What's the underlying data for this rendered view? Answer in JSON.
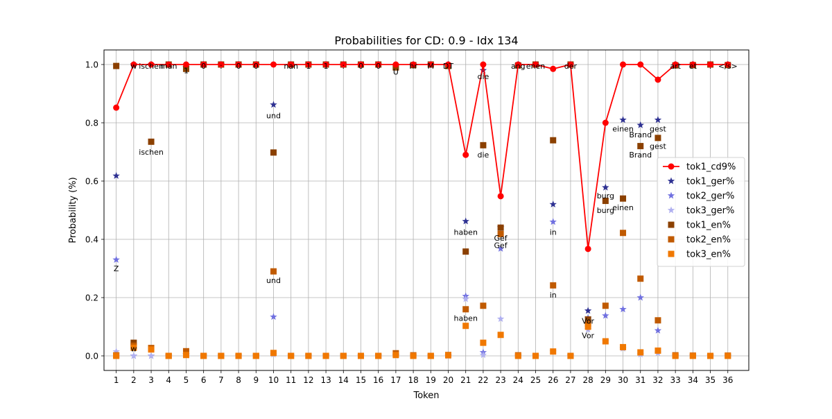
{
  "chart_data": {
    "type": "scatter",
    "title": "Probabilities for CD: 0.9 - Idx 134",
    "xlabel": "Token",
    "ylabel": "Probability (%)",
    "x": [
      1,
      2,
      3,
      4,
      5,
      6,
      7,
      8,
      9,
      10,
      11,
      12,
      13,
      14,
      15,
      16,
      17,
      18,
      19,
      20,
      21,
      22,
      23,
      24,
      25,
      26,
      27,
      28,
      29,
      30,
      31,
      32,
      33,
      34,
      35,
      36
    ],
    "xlim": [
      0.3,
      37.2
    ],
    "ylim": [
      -0.05,
      1.05
    ],
    "yticks": [
      0.0,
      0.2,
      0.4,
      0.6,
      0.8,
      1.0
    ],
    "grid": true,
    "legend_position": "center-right",
    "series": [
      {
        "name": "tok1_cd9%",
        "kind": "line",
        "color": "#ff0000",
        "marker": "circle",
        "values": [
          0.852,
          1.0,
          1.0,
          1.0,
          1.0,
          1.0,
          1.0,
          1.0,
          1.0,
          1.0,
          1.0,
          1.0,
          1.0,
          1.0,
          1.0,
          1.0,
          1.0,
          1.0,
          1.0,
          1.0,
          0.69,
          1.0,
          0.548,
          1.0,
          1.0,
          0.985,
          1.0,
          0.367,
          0.8,
          1.0,
          1.0,
          0.948,
          1.0,
          1.0,
          1.0,
          1.0
        ]
      },
      {
        "name": "tok1_ger%",
        "kind": "scatter",
        "color": "#2e3192",
        "marker": "star",
        "values": [
          0.618,
          1.0,
          1.0,
          1.0,
          0.99,
          1.0,
          1.0,
          1.0,
          1.0,
          0.862,
          1.0,
          1.0,
          1.0,
          1.0,
          1.0,
          1.0,
          0.995,
          1.0,
          1.0,
          1.0,
          0.462,
          0.98,
          0.44,
          1.0,
          1.0,
          0.52,
          1.0,
          0.155,
          0.578,
          0.81,
          0.792,
          0.81,
          1.0,
          1.0,
          1.0,
          1.0
        ]
      },
      {
        "name": "tok2_ger%",
        "kind": "scatter",
        "color": "#7070e0",
        "marker": "star",
        "values": [
          0.33,
          0.0,
          0.0,
          0.0,
          0.005,
          0.0,
          0.0,
          0.0,
          0.0,
          0.134,
          0.0,
          0.0,
          0.0,
          0.0,
          0.0,
          0.0,
          0.003,
          0.0,
          0.0,
          0.0,
          0.205,
          0.012,
          0.368,
          0.0,
          0.0,
          0.46,
          0.0,
          0.13,
          0.138,
          0.16,
          0.2,
          0.087,
          0.0,
          0.0,
          0.0,
          0.0
        ]
      },
      {
        "name": "tok3_ger%",
        "kind": "scatter",
        "color": "#b0b0f0",
        "marker": "star",
        "values": [
          0.015,
          0.0,
          0.0,
          0.0,
          0.002,
          0.0,
          0.0,
          0.0,
          0.0,
          0.005,
          0.0,
          0.0,
          0.0,
          0.0,
          0.0,
          0.0,
          0.001,
          0.0,
          0.0,
          0.0,
          0.195,
          0.003,
          0.127,
          0.0,
          0.0,
          0.015,
          0.0,
          0.09,
          0.05,
          0.025,
          0.005,
          0.01,
          0.0,
          0.0,
          0.0,
          0.0
        ]
      },
      {
        "name": "tok1_en%",
        "kind": "scatter",
        "color": "#8b4000",
        "marker": "square",
        "values": [
          0.995,
          0.045,
          0.735,
          1.0,
          0.985,
          1.0,
          1.0,
          1.0,
          1.0,
          0.698,
          1.0,
          1.0,
          1.0,
          1.0,
          1.0,
          1.0,
          0.99,
          0.998,
          1.0,
          0.995,
          0.358,
          0.723,
          0.44,
          0.997,
          1.0,
          0.74,
          1.0,
          0.125,
          0.532,
          0.54,
          0.72,
          0.748,
          0.997,
          0.998,
          1.0,
          0.998
        ]
      },
      {
        "name": "tok2_en%",
        "kind": "scatter",
        "color": "#c05a00",
        "marker": "square",
        "values": [
          0.002,
          0.035,
          0.027,
          0.0,
          0.016,
          0.0,
          0.0,
          0.0,
          0.0,
          0.29,
          0.0,
          0.0,
          0.0,
          0.0,
          0.0,
          0.0,
          0.009,
          0.002,
          0.0,
          0.003,
          0.16,
          0.172,
          0.418,
          0.002,
          0.0,
          0.242,
          0.0,
          0.11,
          0.172,
          0.422,
          0.265,
          0.122,
          0.002,
          0.001,
          0.0,
          0.001
        ]
      },
      {
        "name": "tok3_en%",
        "kind": "scatter",
        "color": "#f07800",
        "marker": "square",
        "values": [
          0.0,
          0.028,
          0.022,
          0.0,
          0.003,
          0.0,
          0.0,
          0.0,
          0.0,
          0.01,
          0.0,
          0.0,
          0.0,
          0.0,
          0.0,
          0.0,
          0.003,
          0.0,
          0.0,
          0.002,
          0.103,
          0.045,
          0.072,
          0.0,
          0.0,
          0.015,
          0.0,
          0.1,
          0.05,
          0.03,
          0.012,
          0.018,
          0.0,
          0.0,
          0.0,
          0.0
        ]
      }
    ],
    "annotations": [
      {
        "x": 1,
        "y": 0.3,
        "text": "Z"
      },
      {
        "x": 2,
        "y": 0.995,
        "text": "w"
      },
      {
        "x": 2,
        "y": 0.0245,
        "text": "w"
      },
      {
        "x": 3,
        "y": 0.995,
        "text": "ischen"
      },
      {
        "x": 3,
        "y": 0.7,
        "text": "ischen"
      },
      {
        "x": 4,
        "y": 0.995,
        "text": "man"
      },
      {
        "x": 5,
        "y": 0.98,
        "text": "1"
      },
      {
        "x": 6,
        "y": 0.995,
        "text": "0"
      },
      {
        "x": 7,
        "y": 0.995,
        "text": ":"
      },
      {
        "x": 8,
        "y": 0.995,
        "text": "0"
      },
      {
        "x": 9,
        "y": 0.995,
        "text": "0"
      },
      {
        "x": 10,
        "y": 0.825,
        "text": "und"
      },
      {
        "x": 10,
        "y": 0.26,
        "text": "und"
      },
      {
        "x": 11,
        "y": 0.995,
        "text": "nan"
      },
      {
        "x": 12,
        "y": 0.995,
        "text": "1"
      },
      {
        "x": 13,
        "y": 0.995,
        "text": "1"
      },
      {
        "x": 14,
        "y": 0.995,
        "text": ":"
      },
      {
        "x": 15,
        "y": 0.995,
        "text": "0"
      },
      {
        "x": 16,
        "y": 0.995,
        "text": "0"
      },
      {
        "x": 17,
        "y": 0.975,
        "text": "U"
      },
      {
        "x": 18,
        "y": 0.995,
        "text": "hr"
      },
      {
        "x": 19,
        "y": 0.995,
        "text": "M"
      },
      {
        "x": 20,
        "y": 0.995,
        "text": "DT"
      },
      {
        "x": 21,
        "y": 0.425,
        "text": "haben"
      },
      {
        "x": 21,
        "y": 0.13,
        "text": "haben"
      },
      {
        "x": 22,
        "y": 0.96,
        "text": "die"
      },
      {
        "x": 22,
        "y": 0.69,
        "text": "die"
      },
      {
        "x": 23,
        "y": 0.405,
        "text": "Gef"
      },
      {
        "x": 23,
        "y": 0.38,
        "text": "Gef"
      },
      {
        "x": 24,
        "y": 0.995,
        "text": "ang"
      },
      {
        "x": 25,
        "y": 0.995,
        "text": "enen"
      },
      {
        "x": 26,
        "y": 0.425,
        "text": "in"
      },
      {
        "x": 26,
        "y": 0.21,
        "text": "in"
      },
      {
        "x": 27,
        "y": 0.995,
        "text": "der"
      },
      {
        "x": 28,
        "y": 0.12,
        "text": "Vor"
      },
      {
        "x": 28,
        "y": 0.07,
        "text": "Vor"
      },
      {
        "x": 29,
        "y": 0.55,
        "text": "burg"
      },
      {
        "x": 29,
        "y": 0.5,
        "text": "burg"
      },
      {
        "x": 30,
        "y": 0.78,
        "text": "einen"
      },
      {
        "x": 30,
        "y": 0.51,
        "text": "einen"
      },
      {
        "x": 31,
        "y": 0.76,
        "text": "Brand"
      },
      {
        "x": 31,
        "y": 0.69,
        "text": "Brand"
      },
      {
        "x": 32,
        "y": 0.78,
        "text": "gest"
      },
      {
        "x": 32,
        "y": 0.72,
        "text": "gest"
      },
      {
        "x": 33,
        "y": 0.995,
        "text": "art"
      },
      {
        "x": 34,
        "y": 0.995,
        "text": "et"
      },
      {
        "x": 35,
        "y": 0.995,
        "text": "."
      },
      {
        "x": 36,
        "y": 0.995,
        "text": "</s>"
      }
    ]
  }
}
